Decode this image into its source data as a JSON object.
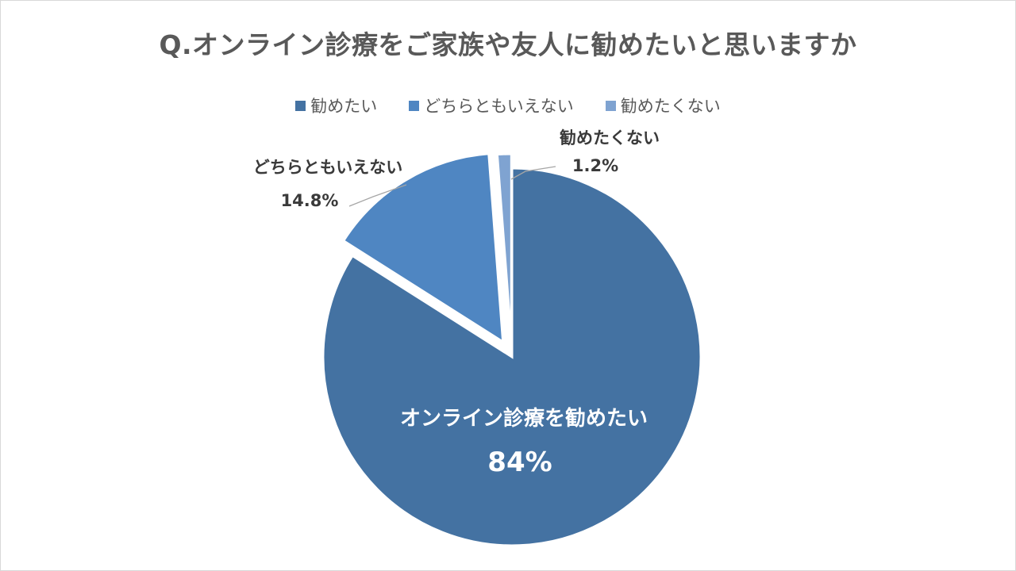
{
  "colors": {
    "recommend": "#4472a2",
    "neutral": "#4f86c2",
    "not_recommend": "#7fa3d1",
    "leader": "#a6a6a6",
    "label_dark": "#3a3a3a",
    "label_light": "#ffffff"
  },
  "chart_data": {
    "type": "pie",
    "title": "Q.オンライン診療をご家族や友人に勧めたいと思いますか",
    "legend": [
      "勧めたい",
      "どちらともいえない",
      "勧めたくない"
    ],
    "legend_position": "top",
    "slices": [
      {
        "name": "勧めたい",
        "value": 84,
        "label": "オンライン診療を勧めたい",
        "value_label": "84%",
        "color_key": "recommend",
        "exploded": false
      },
      {
        "name": "どちらともいえない",
        "value": 14.8,
        "label": "どちらともいえない",
        "value_label": "14.8%",
        "color_key": "neutral",
        "exploded": true
      },
      {
        "name": "勧めたくない",
        "value": 1.2,
        "label": "勧めたくない",
        "value_label": "1.2%",
        "color_key": "not_recommend",
        "exploded": true
      }
    ]
  }
}
